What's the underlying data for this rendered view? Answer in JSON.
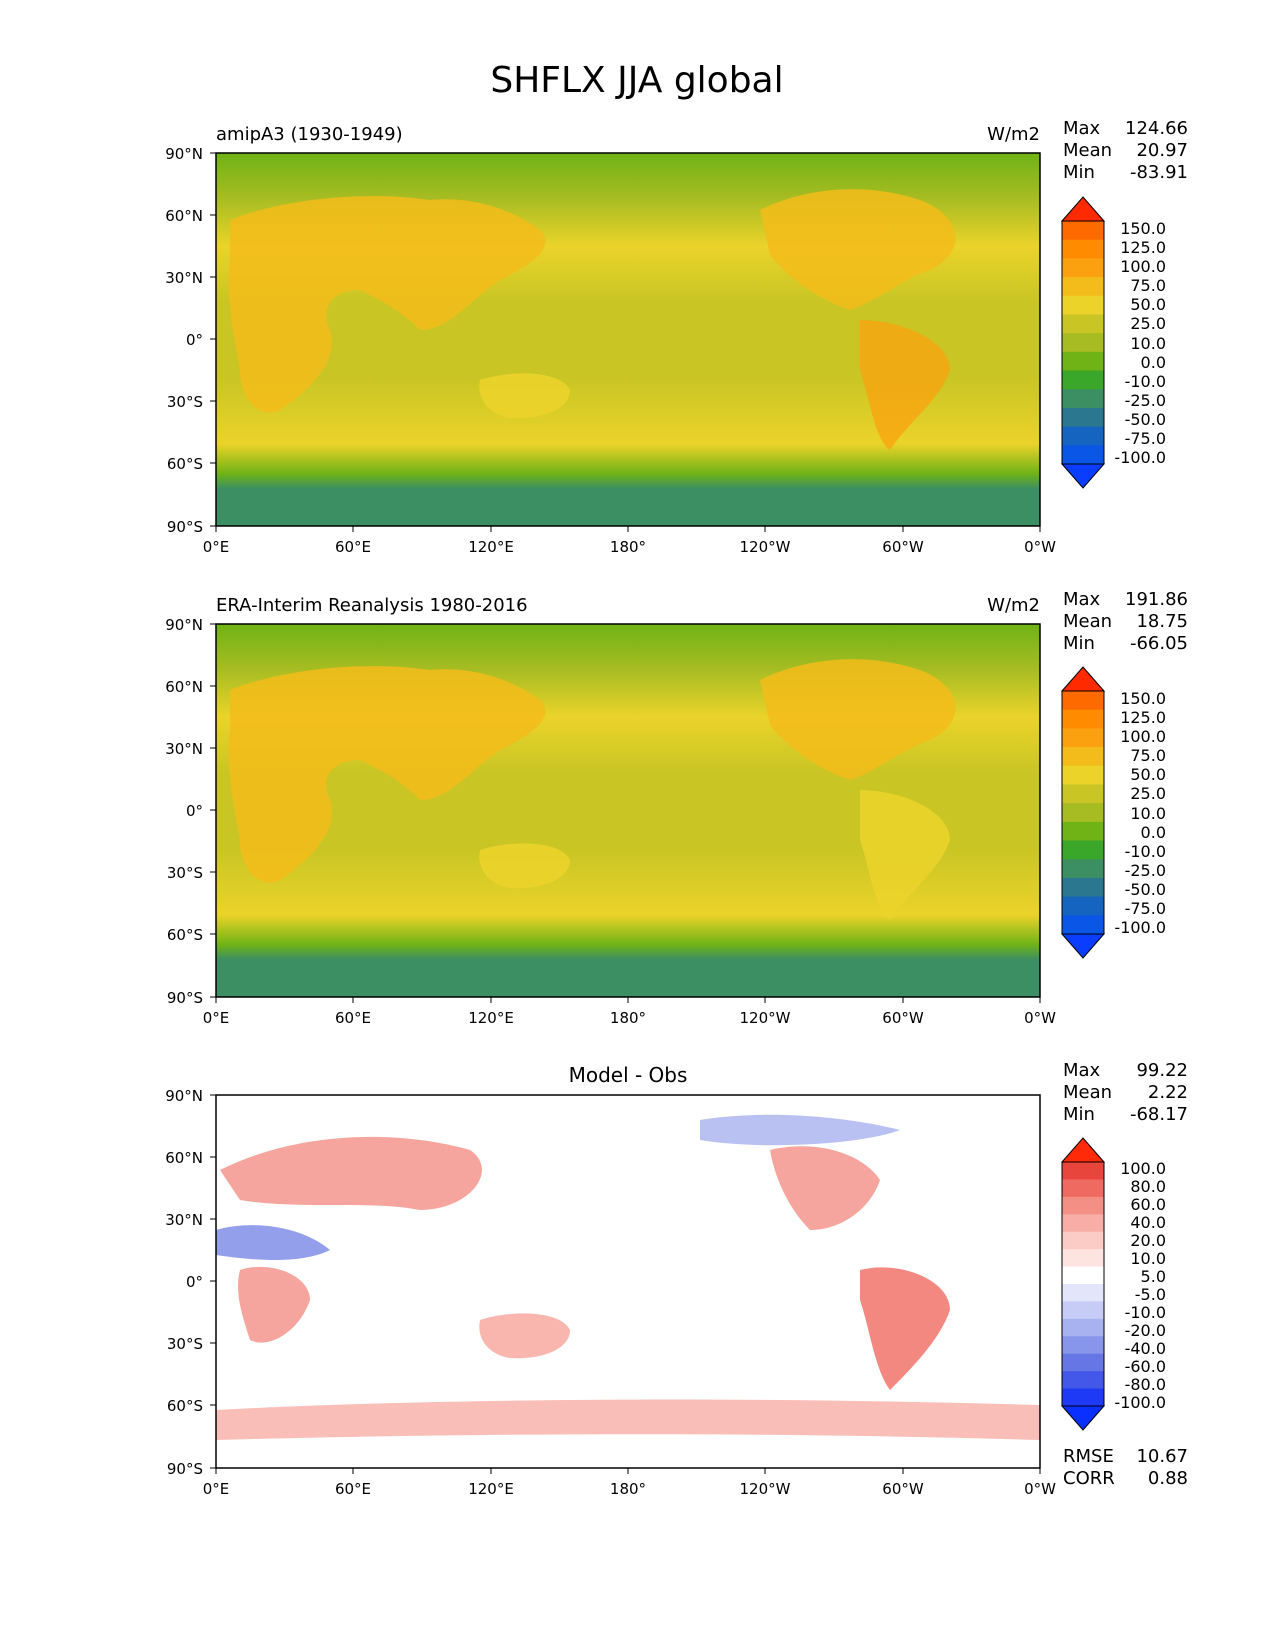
{
  "figure_title": "SHFLX JJA global",
  "chart_data": [
    {
      "type": "heatmap",
      "panel": "test",
      "left_title": "amipA3 (1930-1949)",
      "center_title": "",
      "units": "W/m2",
      "stats": [
        {
          "label": "Max",
          "value": "124.66"
        },
        {
          "label": "Mean",
          "value": "20.97"
        },
        {
          "label": "Min",
          "value": "-83.91"
        }
      ],
      "colorbar": {
        "labels": [
          "150.0",
          "125.0",
          "100.0",
          "75.0",
          "50.0",
          "25.0",
          "10.0",
          "0.0",
          "-10.0",
          "-25.0",
          "-50.0",
          "-75.0",
          "-100.0"
        ],
        "colors": [
          "#ff2a00",
          "#ff6a00",
          "#ff8c00",
          "#fba10f",
          "#f3bc1a",
          "#ebd32a",
          "#c8c524",
          "#a6bc22",
          "#6fb316",
          "#3aa62a",
          "#3c8f62",
          "#2a778f",
          "#1565c0",
          "#0a56e6",
          "#0a3dff"
        ]
      },
      "xticks": [
        "0°E",
        "60°E",
        "120°E",
        "180°",
        "120°W",
        "60°W",
        "0°W"
      ],
      "yticks": [
        "90°N",
        "60°N",
        "30°N",
        "0°",
        "30°S",
        "60°S",
        "90°S"
      ]
    },
    {
      "type": "heatmap",
      "panel": "reference",
      "left_title": "ERA-Interim Reanalysis 1980-2016",
      "center_title": "",
      "units": "W/m2",
      "stats": [
        {
          "label": "Max",
          "value": "191.86"
        },
        {
          "label": "Mean",
          "value": "18.75"
        },
        {
          "label": "Min",
          "value": "-66.05"
        }
      ],
      "colorbar": {
        "labels": [
          "150.0",
          "125.0",
          "100.0",
          "75.0",
          "50.0",
          "25.0",
          "10.0",
          "0.0",
          "-10.0",
          "-25.0",
          "-50.0",
          "-75.0",
          "-100.0"
        ],
        "colors": [
          "#ff2a00",
          "#ff6a00",
          "#ff8c00",
          "#fba10f",
          "#f3bc1a",
          "#ebd32a",
          "#c8c524",
          "#a6bc22",
          "#6fb316",
          "#3aa62a",
          "#3c8f62",
          "#2a778f",
          "#1565c0",
          "#0a56e6",
          "#0a3dff"
        ]
      },
      "xticks": [
        "0°E",
        "60°E",
        "120°E",
        "180°",
        "120°W",
        "60°W",
        "0°W"
      ],
      "yticks": [
        "90°N",
        "60°N",
        "30°N",
        "0°",
        "30°S",
        "60°S",
        "90°S"
      ]
    },
    {
      "type": "heatmap",
      "panel": "difference",
      "left_title": "",
      "center_title": "Model - Obs",
      "units": "",
      "stats": [
        {
          "label": "Max",
          "value": "99.22"
        },
        {
          "label": "Mean",
          "value": "2.22"
        },
        {
          "label": "Min",
          "value": "-68.17"
        }
      ],
      "extra_stats": [
        {
          "label": "RMSE",
          "value": "10.67"
        },
        {
          "label": "CORR",
          "value": "0.88"
        }
      ],
      "colorbar": {
        "labels": [
          "100.0",
          "80.0",
          "60.0",
          "40.0",
          "20.0",
          "10.0",
          "5.0",
          "-5.0",
          "-10.0",
          "-20.0",
          "-40.0",
          "-60.0",
          "-80.0",
          "-100.0"
        ],
        "colors": [
          "#ff2a08",
          "#e8453c",
          "#ef6a60",
          "#f48f86",
          "#f8aea6",
          "#fbcbc6",
          "#fde4e1",
          "#ffffff",
          "#e3e6fb",
          "#c6ccf6",
          "#a8b2f0",
          "#8795ea",
          "#6676e4",
          "#4358e9",
          "#1f3af6",
          "#0a30ff"
        ]
      },
      "xticks": [
        "0°E",
        "60°E",
        "120°E",
        "180°",
        "120°W",
        "60°W",
        "0°W"
      ],
      "yticks": [
        "90°N",
        "60°N",
        "30°N",
        "0°",
        "30°S",
        "60°S",
        "90°S"
      ]
    }
  ]
}
